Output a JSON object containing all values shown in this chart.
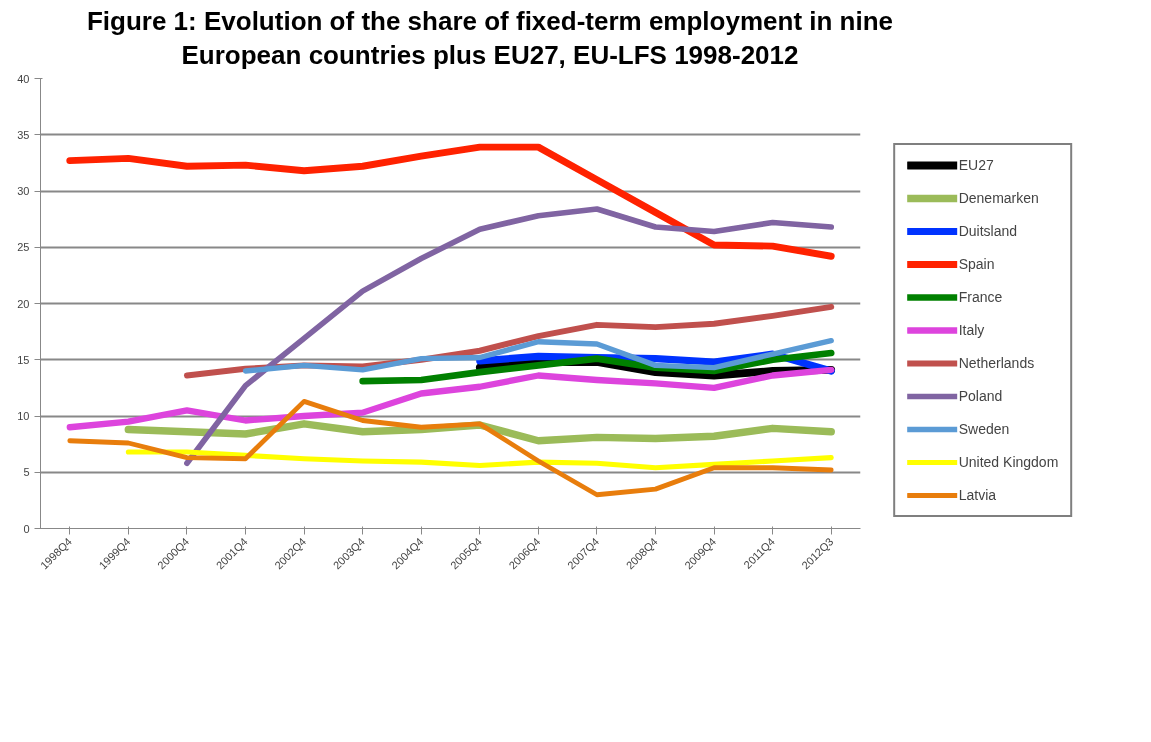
{
  "chart_data": {
    "type": "line",
    "title": "Figure 1: Evolution of the share of fixed-term employment in nine European countries plus EU27, EU-LFS 1998-2012",
    "categories": [
      "1998Q4",
      "1999Q4",
      "2000Q4",
      "2001Q4",
      "2002Q4",
      "2003Q4",
      "2004Q4",
      "2005Q4",
      "2006Q4",
      "2007Q4",
      "2008Q4",
      "2009Q4",
      "2011Q4",
      "2012Q3"
    ],
    "ylim": [
      0,
      40
    ],
    "yticks": [
      0,
      5,
      10,
      15,
      20,
      25,
      30,
      35,
      40
    ],
    "grid": "y",
    "legend": "right",
    "marker": "none",
    "line_style": "solid",
    "series": [
      {
        "name": "EU27",
        "color": "#000000",
        "values": [
          null,
          null,
          null,
          null,
          null,
          null,
          null,
          14.3,
          14.8,
          14.8,
          13.9,
          13.6,
          14.0,
          14.1
        ]
      },
      {
        "name": "Denemarken",
        "color": "#9bbb59",
        "values": [
          null,
          8.8,
          8.6,
          8.4,
          9.3,
          8.6,
          8.8,
          9.2,
          7.8,
          8.1,
          8.0,
          8.2,
          8.9,
          8.6
        ]
      },
      {
        "name": "Duitsland",
        "color": "#0033ff",
        "values": [
          null,
          null,
          null,
          null,
          null,
          null,
          null,
          14.9,
          15.3,
          15.2,
          15.1,
          14.8,
          15.5,
          14.0
        ]
      },
      {
        "name": "Spain",
        "color": "#ff2200",
        "values": [
          32.7,
          32.9,
          32.2,
          32.3,
          31.8,
          32.2,
          33.1,
          33.9,
          33.9,
          31.0,
          28.1,
          25.2,
          25.1,
          24.2
        ]
      },
      {
        "name": "France",
        "color": "#008000",
        "values": [
          null,
          null,
          null,
          null,
          null,
          13.1,
          13.2,
          13.9,
          14.5,
          15.1,
          14.3,
          14.0,
          15.0,
          15.6
        ]
      },
      {
        "name": "Italy",
        "color": "#dd44dd",
        "values": [
          9.0,
          9.5,
          10.5,
          9.6,
          10.0,
          10.3,
          12.0,
          12.6,
          13.6,
          13.2,
          12.9,
          12.5,
          13.6,
          14.1
        ]
      },
      {
        "name": "Netherlands",
        "color": "#c0504d",
        "values": [
          null,
          null,
          13.6,
          14.2,
          14.5,
          14.4,
          15.0,
          15.8,
          17.1,
          18.1,
          17.9,
          18.2,
          18.9,
          19.7
        ]
      },
      {
        "name": "Poland",
        "color": "#8064a2",
        "values": [
          null,
          null,
          5.8,
          12.7,
          16.9,
          21.1,
          24.0,
          26.6,
          27.8,
          28.4,
          26.8,
          26.4,
          27.2,
          26.8
        ]
      },
      {
        "name": "Sweden",
        "color": "#5b9bd5",
        "values": [
          null,
          null,
          null,
          14.0,
          14.5,
          14.1,
          15.1,
          15.2,
          16.6,
          16.4,
          14.5,
          14.3,
          15.5,
          16.7
        ]
      },
      {
        "name": "United Kingdom",
        "color": "#ffff00",
        "values": [
          null,
          6.8,
          6.8,
          6.5,
          6.2,
          6.0,
          5.9,
          5.6,
          5.9,
          5.8,
          5.4,
          5.7,
          6.0,
          6.3
        ]
      },
      {
        "name": "Latvia",
        "color": "#e87d0c",
        "values": [
          7.8,
          7.6,
          6.3,
          6.2,
          11.3,
          9.6,
          9.0,
          9.3,
          6.0,
          3.0,
          3.5,
          5.4,
          5.4,
          5.2
        ]
      }
    ]
  }
}
